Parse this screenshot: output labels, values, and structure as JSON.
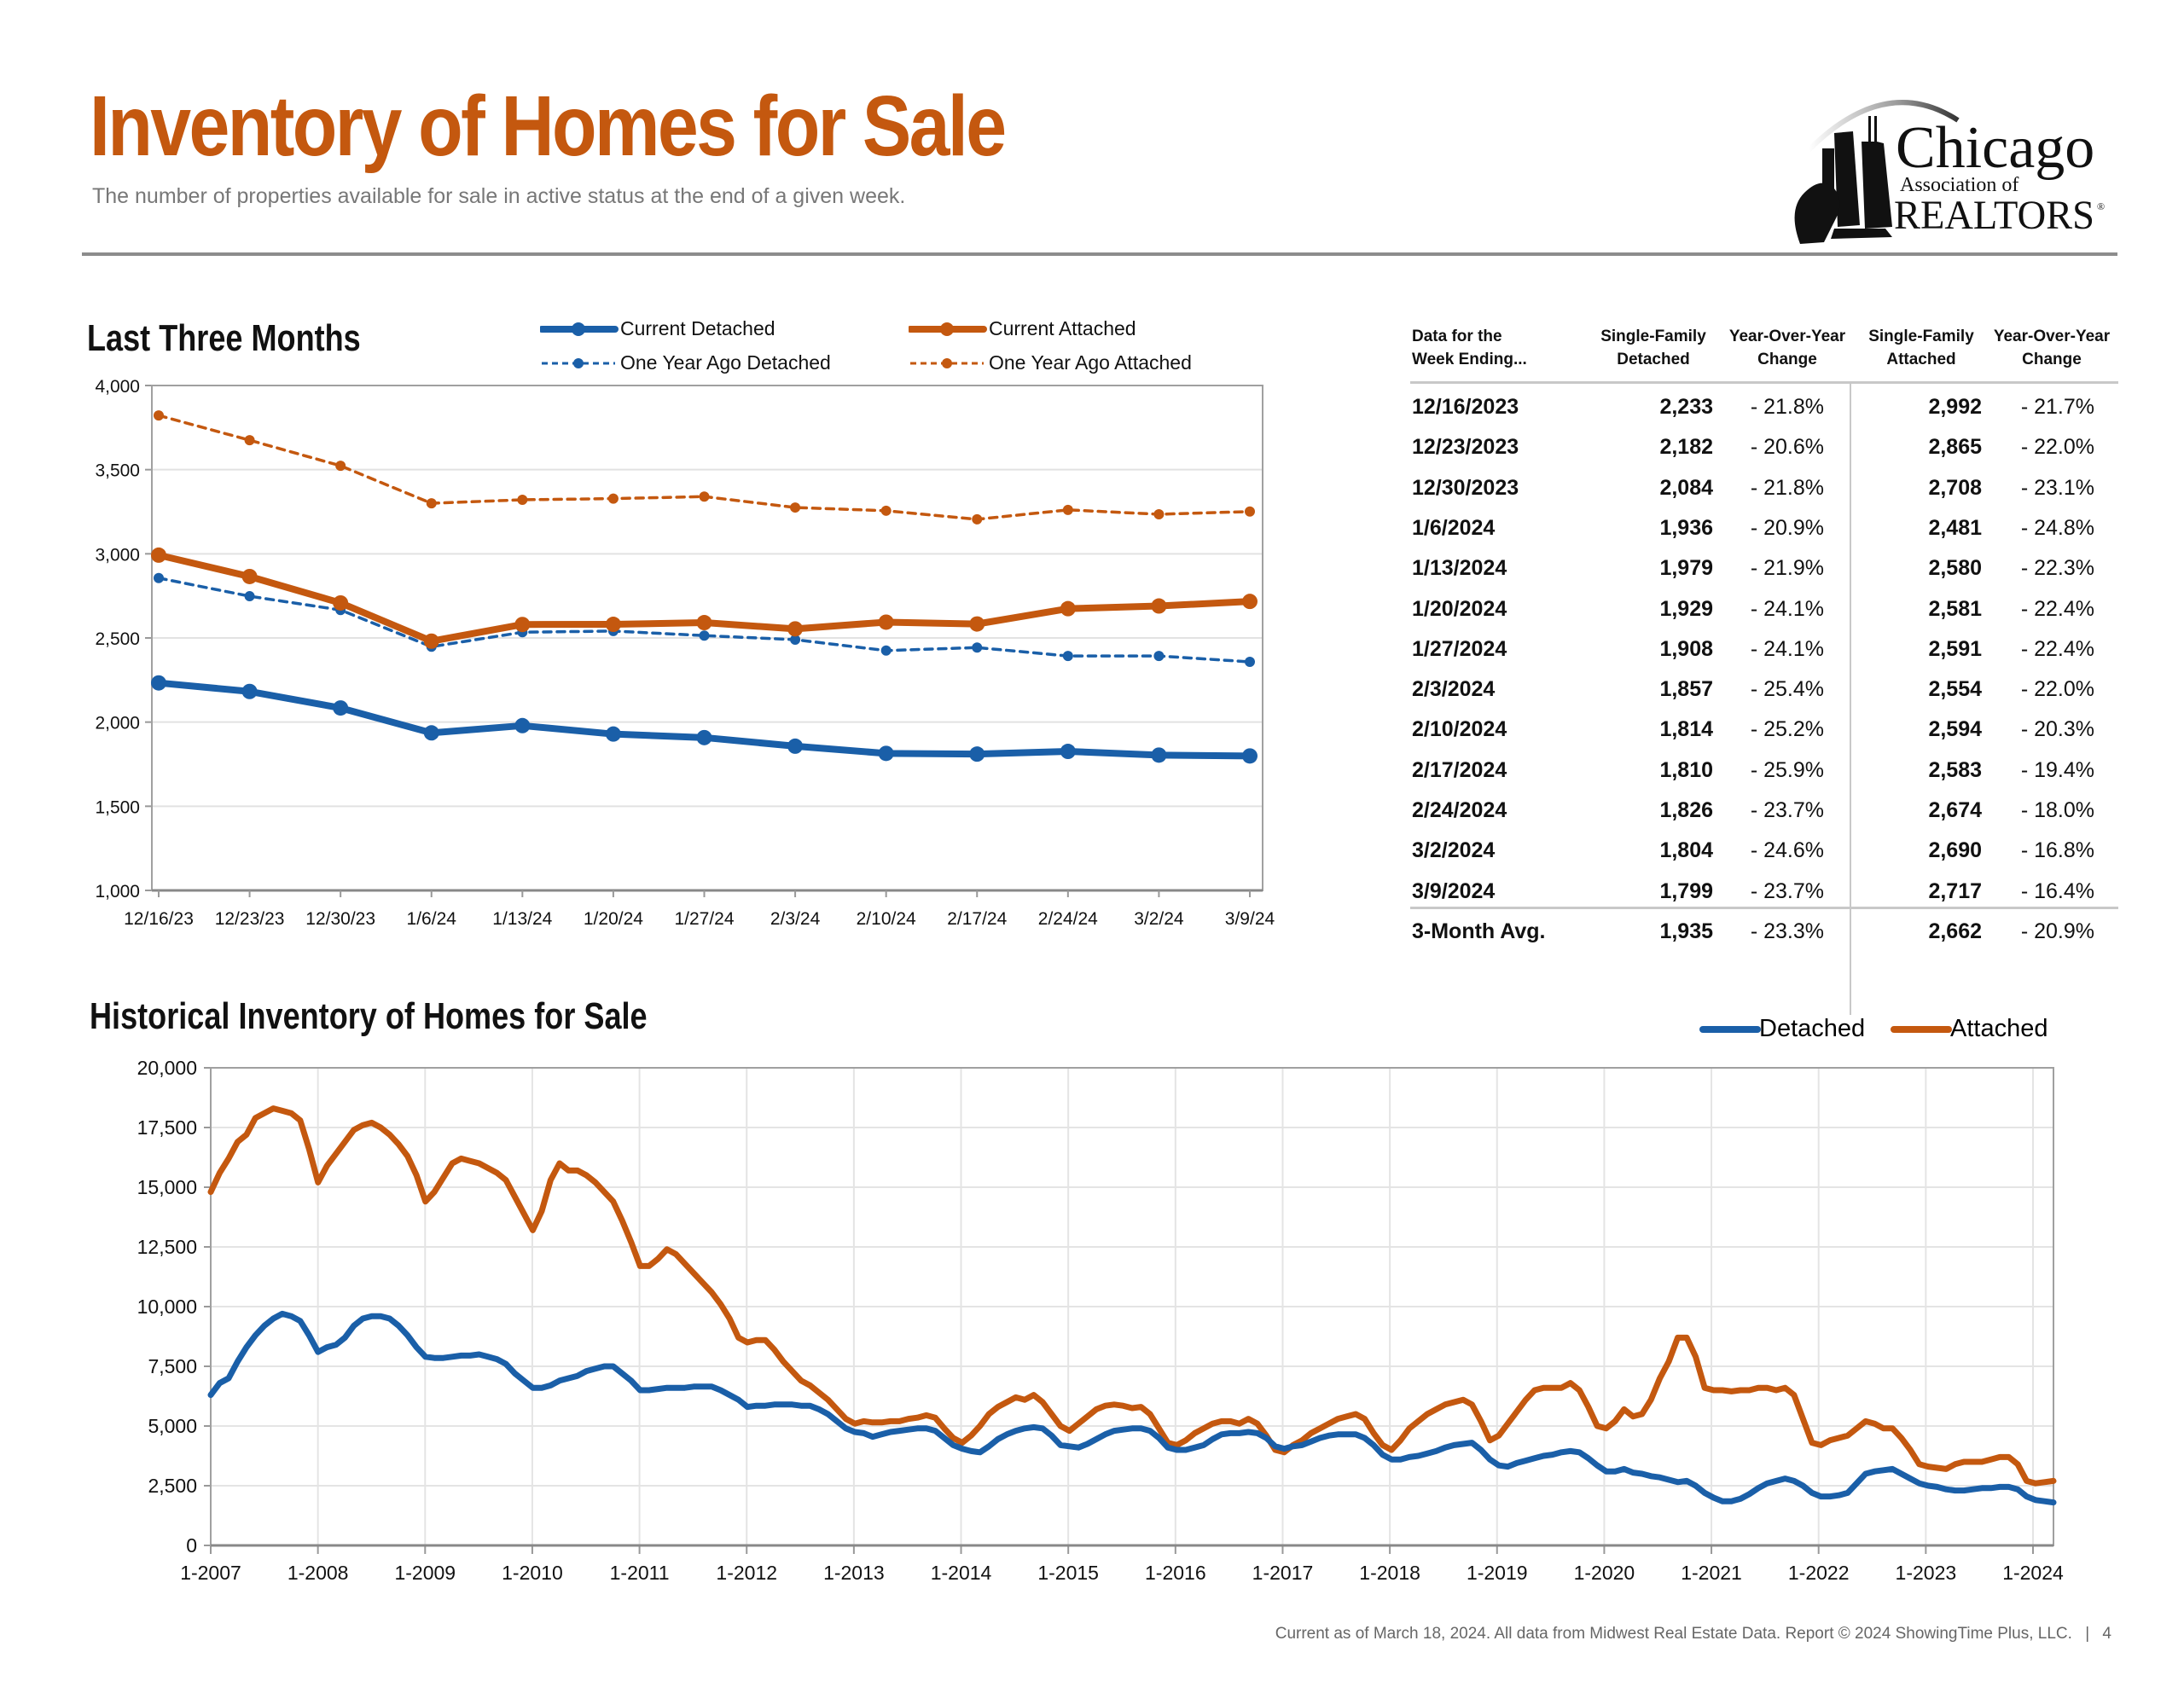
{
  "header": {
    "title": "Inventory of Homes for Sale",
    "subtitle": "The number of properties available for sale in active status at the end of a given week."
  },
  "logo": {
    "line1": "Chicago",
    "line2": "Association of",
    "line3": "REALTORS",
    "registered": "®"
  },
  "colors": {
    "accent": "#c4580f",
    "detached": "#1a5fa8",
    "attached": "#c4580f"
  },
  "recent_section": {
    "title": "Last Three Months",
    "legend": {
      "current_detached": "Current Detached",
      "current_attached": "Current Attached",
      "year_ago_detached": "One Year Ago Detached",
      "year_ago_attached": "One Year Ago Attached"
    }
  },
  "historical_section": {
    "title": "Historical Inventory of Homes for Sale",
    "legend": {
      "detached": "Detached",
      "attached": "Attached"
    }
  },
  "table": {
    "headers": {
      "week": [
        "Data for the",
        "Week Ending..."
      ],
      "sf_detached": [
        "Single-Family",
        "Detached"
      ],
      "yoy_detached": [
        "Year-Over-Year",
        "Change"
      ],
      "sf_attached": [
        "Single-Family",
        "Attached"
      ],
      "yoy_attached": [
        "Year-Over-Year",
        "Change"
      ]
    },
    "rows": [
      {
        "week": "12/16/2023",
        "detached": "2,233",
        "detached_yoy": "- 21.8%",
        "attached": "2,992",
        "attached_yoy": "- 21.7%"
      },
      {
        "week": "12/23/2023",
        "detached": "2,182",
        "detached_yoy": "- 20.6%",
        "attached": "2,865",
        "attached_yoy": "- 22.0%"
      },
      {
        "week": "12/30/2023",
        "detached": "2,084",
        "detached_yoy": "- 21.8%",
        "attached": "2,708",
        "attached_yoy": "- 23.1%"
      },
      {
        "week": "1/6/2024",
        "detached": "1,936",
        "detached_yoy": "- 20.9%",
        "attached": "2,481",
        "attached_yoy": "- 24.8%"
      },
      {
        "week": "1/13/2024",
        "detached": "1,979",
        "detached_yoy": "- 21.9%",
        "attached": "2,580",
        "attached_yoy": "- 22.3%"
      },
      {
        "week": "1/20/2024",
        "detached": "1,929",
        "detached_yoy": "- 24.1%",
        "attached": "2,581",
        "attached_yoy": "- 22.4%"
      },
      {
        "week": "1/27/2024",
        "detached": "1,908",
        "detached_yoy": "- 24.1%",
        "attached": "2,591",
        "attached_yoy": "- 22.4%"
      },
      {
        "week": "2/3/2024",
        "detached": "1,857",
        "detached_yoy": "- 25.4%",
        "attached": "2,554",
        "attached_yoy": "- 22.0%"
      },
      {
        "week": "2/10/2024",
        "detached": "1,814",
        "detached_yoy": "- 25.2%",
        "attached": "2,594",
        "attached_yoy": "- 20.3%"
      },
      {
        "week": "2/17/2024",
        "detached": "1,810",
        "detached_yoy": "- 25.9%",
        "attached": "2,583",
        "attached_yoy": "- 19.4%"
      },
      {
        "week": "2/24/2024",
        "detached": "1,826",
        "detached_yoy": "- 23.7%",
        "attached": "2,674",
        "attached_yoy": "- 18.0%"
      },
      {
        "week": "3/2/2024",
        "detached": "1,804",
        "detached_yoy": "- 24.6%",
        "attached": "2,690",
        "attached_yoy": "- 16.8%"
      },
      {
        "week": "3/9/2024",
        "detached": "1,799",
        "detached_yoy": "- 23.7%",
        "attached": "2,717",
        "attached_yoy": "- 16.4%"
      }
    ],
    "average": {
      "week": "3-Month Avg.",
      "detached": "1,935",
      "detached_yoy": "- 23.3%",
      "attached": "2,662",
      "attached_yoy": "- 20.9%"
    }
  },
  "footer": {
    "text": "Current as of March 18, 2024.  All data from Midwest Real Estate Data. Report © 2024 ShowingTime Plus, LLC.",
    "separator": "|",
    "page_number": "4"
  },
  "chart_data": [
    {
      "type": "line",
      "title": "Last Three Months",
      "xlabel": "",
      "ylabel": "",
      "categories": [
        "12/16/23",
        "12/23/23",
        "12/30/23",
        "1/6/24",
        "1/13/24",
        "1/20/24",
        "1/27/24",
        "2/3/24",
        "2/10/24",
        "2/17/24",
        "2/24/24",
        "3/2/24",
        "3/9/24"
      ],
      "ylim": [
        1000,
        4000
      ],
      "yticks": [
        1000,
        1500,
        2000,
        2500,
        3000,
        3500,
        4000
      ],
      "ytick_labels": [
        "1,000",
        "1,500",
        "2,000",
        "2,500",
        "3,000",
        "3,500",
        "4,000"
      ],
      "grid": true,
      "legend_position": "top",
      "series": [
        {
          "key": "year_ago_attached",
          "name": "One Year Ago Attached",
          "color": "#c4580f",
          "style": "dashed",
          "values": [
            3822,
            3675,
            3523,
            3300,
            3321,
            3328,
            3340,
            3275,
            3256,
            3205,
            3261,
            3235,
            3251
          ]
        },
        {
          "key": "year_ago_detached",
          "name": "One Year Ago Detached",
          "color": "#1a5fa8",
          "style": "dashed",
          "values": [
            2856,
            2748,
            2666,
            2448,
            2534,
            2541,
            2514,
            2490,
            2425,
            2443,
            2393,
            2393,
            2358
          ]
        },
        {
          "key": "current_attached",
          "name": "Current Attached",
          "color": "#c4580f",
          "style": "solid",
          "values": [
            2992,
            2865,
            2708,
            2481,
            2580,
            2581,
            2591,
            2554,
            2594,
            2583,
            2674,
            2690,
            2717
          ]
        },
        {
          "key": "current_detached",
          "name": "Current Detached",
          "color": "#1a5fa8",
          "style": "solid",
          "values": [
            2233,
            2182,
            2084,
            1936,
            1979,
            1929,
            1908,
            1857,
            1814,
            1810,
            1826,
            1804,
            1799
          ]
        }
      ]
    },
    {
      "type": "line",
      "title": "Historical Inventory of Homes for Sale",
      "xlabel": "",
      "ylabel": "",
      "x_start": "2007-01",
      "x_frequency": "monthly",
      "x_range_years": [
        2007,
        2024.2
      ],
      "xticks": [
        "1-2007",
        "1-2008",
        "1-2009",
        "1-2010",
        "1-2011",
        "1-2012",
        "1-2013",
        "1-2014",
        "1-2015",
        "1-2016",
        "1-2017",
        "1-2018",
        "1-2019",
        "1-2020",
        "1-2021",
        "1-2022",
        "1-2023",
        "1-2024"
      ],
      "ylim": [
        0,
        20000
      ],
      "yticks": [
        0,
        2500,
        5000,
        7500,
        10000,
        12500,
        15000,
        17500,
        20000
      ],
      "ytick_labels": [
        "0",
        "2,500",
        "5,000",
        "7,500",
        "10,000",
        "12,500",
        "15,000",
        "17,500",
        "20,000"
      ],
      "grid": true,
      "legend_position": "top-right",
      "series": [
        {
          "key": "attached",
          "name": "Attached",
          "color": "#c4580f",
          "values": [
            14800,
            15600,
            16200,
            16900,
            17200,
            17900,
            18100,
            18300,
            18200,
            18100,
            17800,
            16600,
            15200,
            15900,
            16400,
            16900,
            17400,
            17600,
            17700,
            17500,
            17200,
            16800,
            16300,
            15500,
            14400,
            14800,
            15400,
            16000,
            16200,
            16100,
            16000,
            15800,
            15600,
            15300,
            14600,
            13900,
            13200,
            14000,
            15300,
            16000,
            15700,
            15700,
            15500,
            15200,
            14800,
            14400,
            13600,
            12700,
            11700,
            11700,
            12000,
            12400,
            12200,
            11800,
            11400,
            11000,
            10600,
            10100,
            9500,
            8700,
            8500,
            8600,
            8600,
            8200,
            7700,
            7300,
            6900,
            6700,
            6400,
            6100,
            5700,
            5300,
            5100,
            5200,
            5150,
            5150,
            5200,
            5200,
            5300,
            5350,
            5450,
            5350,
            4900,
            4500,
            4300,
            4600,
            5000,
            5500,
            5800,
            6000,
            6200,
            6100,
            6300,
            6000,
            5500,
            5000,
            4800,
            5100,
            5400,
            5700,
            5850,
            5900,
            5850,
            5750,
            5800,
            5500,
            4900,
            4300,
            4200,
            4400,
            4700,
            4900,
            5100,
            5200,
            5200,
            5100,
            5300,
            5100,
            4600,
            4000,
            3900,
            4200,
            4400,
            4700,
            4900,
            5100,
            5300,
            5400,
            5500,
            5300,
            4700,
            4200,
            4000,
            4400,
            4900,
            5200,
            5500,
            5700,
            5900,
            6000,
            6100,
            5900,
            5200,
            4400,
            4600,
            5100,
            5600,
            6100,
            6500,
            6600,
            6600,
            6600,
            6800,
            6500,
            5800,
            5000,
            4900,
            5200,
            5700,
            5400,
            5500,
            6100,
            7000,
            7700,
            8700,
            8700,
            7900,
            6600,
            6500,
            6500,
            6450,
            6500,
            6500,
            6600,
            6600,
            6500,
            6600,
            6300,
            5300,
            4300,
            4200,
            4400,
            4500,
            4600,
            4900,
            5200,
            5100,
            4900,
            4900,
            4500,
            4000,
            3400,
            3300,
            3250,
            3200,
            3400,
            3500,
            3500,
            3500,
            3600,
            3700,
            3700,
            3400,
            2700,
            2600,
            2650,
            2700
          ]
        },
        {
          "key": "detached",
          "name": "Detached",
          "color": "#1a5fa8",
          "values": [
            6300,
            6800,
            7000,
            7700,
            8300,
            8800,
            9200,
            9500,
            9700,
            9600,
            9400,
            8800,
            8100,
            8300,
            8400,
            8700,
            9200,
            9500,
            9600,
            9600,
            9500,
            9200,
            8800,
            8300,
            7900,
            7850,
            7850,
            7900,
            7950,
            7950,
            8000,
            7900,
            7800,
            7600,
            7200,
            6900,
            6600,
            6600,
            6700,
            6900,
            7000,
            7100,
            7300,
            7400,
            7500,
            7500,
            7200,
            6900,
            6500,
            6500,
            6550,
            6600,
            6600,
            6600,
            6650,
            6650,
            6650,
            6500,
            6300,
            6100,
            5800,
            5850,
            5850,
            5900,
            5900,
            5900,
            5850,
            5850,
            5700,
            5500,
            5200,
            4900,
            4750,
            4700,
            4550,
            4650,
            4750,
            4800,
            4850,
            4900,
            4900,
            4800,
            4500,
            4200,
            4050,
            3950,
            3900,
            4150,
            4450,
            4650,
            4800,
            4900,
            4950,
            4900,
            4600,
            4200,
            4150,
            4100,
            4250,
            4450,
            4650,
            4800,
            4850,
            4900,
            4900,
            4800,
            4500,
            4100,
            4000,
            4000,
            4100,
            4200,
            4450,
            4650,
            4700,
            4700,
            4750,
            4700,
            4500,
            4150,
            4050,
            4150,
            4200,
            4350,
            4500,
            4600,
            4650,
            4650,
            4650,
            4500,
            4200,
            3800,
            3600,
            3600,
            3700,
            3750,
            3850,
            3950,
            4100,
            4200,
            4250,
            4300,
            4000,
            3600,
            3350,
            3300,
            3450,
            3550,
            3650,
            3750,
            3800,
            3900,
            3950,
            3900,
            3650,
            3350,
            3100,
            3100,
            3200,
            3050,
            3000,
            2900,
            2850,
            2750,
            2650,
            2700,
            2500,
            2200,
            2000,
            1850,
            1850,
            1950,
            2150,
            2400,
            2600,
            2700,
            2800,
            2700,
            2500,
            2200,
            2050,
            2050,
            2100,
            2200,
            2600,
            3000,
            3100,
            3150,
            3200,
            3000,
            2800,
            2600,
            2500,
            2450,
            2350,
            2300,
            2300,
            2350,
            2400,
            2400,
            2450,
            2450,
            2350,
            2050,
            1900,
            1850,
            1800
          ]
        }
      ]
    }
  ]
}
